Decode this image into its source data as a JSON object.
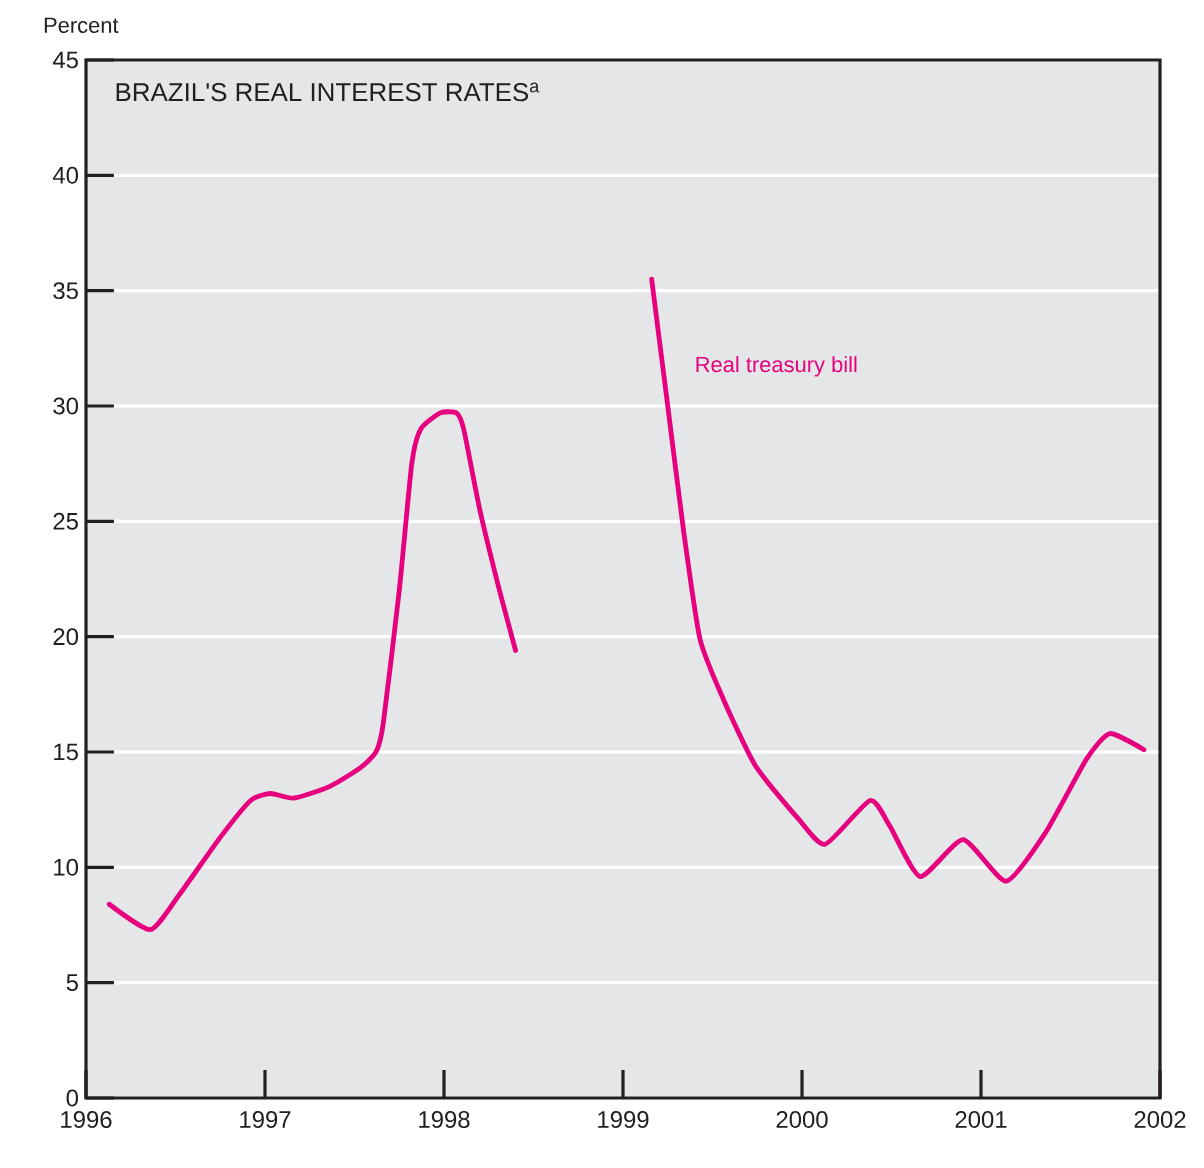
{
  "chart_data": {
    "type": "line",
    "title": "BRAZIL'S REAL INTEREST RATES$^{a}$",
    "ylabel": "Percent",
    "xlim": [
      1996,
      2002
    ],
    "xticks": [
      1996,
      1997,
      1998,
      1999,
      2000,
      2001,
      2002
    ],
    "ylim": [
      0,
      45
    ],
    "yticks": [
      0,
      5,
      10,
      15,
      20,
      25,
      30,
      35,
      40,
      45
    ],
    "grid": "y",
    "series": [
      {
        "name": "Real treasury bill",
        "color": "#e6007e",
        "x": [
          1996.13,
          1996.36,
          1996.52,
          1996.75,
          1996.92,
          1997.03,
          1997.16,
          1997.36,
          1997.53,
          1997.62,
          1997.66,
          1997.75,
          1997.82,
          1997.87,
          1997.98,
          1998.07,
          1998.11,
          1998.2,
          1998.31,
          1998.4,
          1998.8,
          1999.16,
          1999.25,
          1999.34,
          1999.43,
          1999.56,
          1999.74,
          1999.98,
          2000.13,
          2000.38,
          2000.49,
          2000.66,
          2000.9,
          2001.14,
          2001.36,
          2001.59,
          2001.72,
          2001.91
        ],
        "values": [
          8.4,
          7.3,
          8.8,
          11.3,
          12.9,
          13.2,
          13.0,
          13.5,
          14.3,
          15.0,
          16.2,
          22,
          27.5,
          29,
          29.7,
          29.7,
          29,
          25.5,
          22,
          19.4,
          null,
          35.5,
          30.0,
          24.5,
          19.9,
          17.3,
          14.4,
          12.1,
          11.0,
          12.9,
          11.8,
          9.6,
          11.2,
          9.4,
          11.5,
          14.7,
          15.8,
          15.1
        ]
      }
    ]
  }
}
